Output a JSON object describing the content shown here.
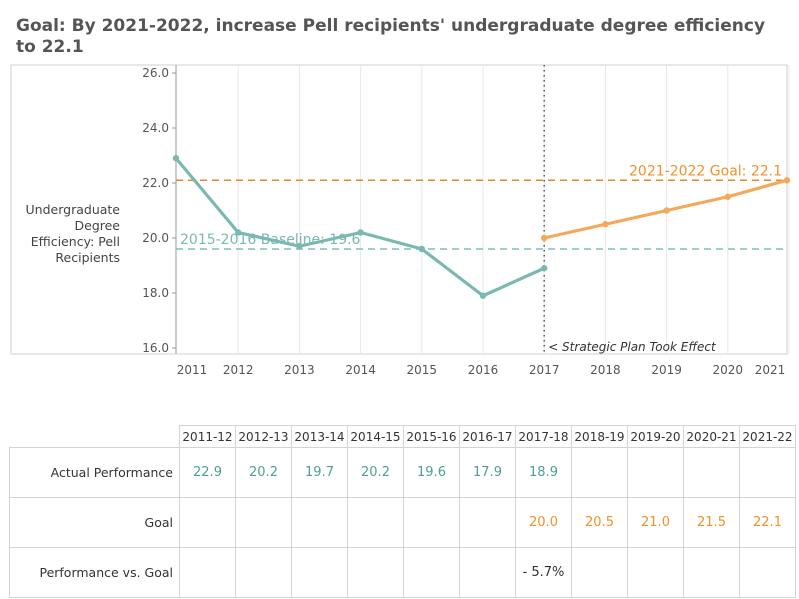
{
  "title": "Goal: By 2021-2022, increase Pell recipients' undergraduate degree efficiency to 22.1",
  "colors": {
    "actual": "#7ab8b2",
    "goal": "#f4a95a",
    "goal_line": "#e0892a",
    "baseline_line": "#7fc0b5",
    "baseline_text": "#7ab8b2",
    "goal_text": "#f0922a",
    "grid": "#e8e8e8",
    "axis": "#999999"
  },
  "chart_data": {
    "type": "line",
    "title": "Goal: By 2021-2022, increase Pell recipients' undergraduate degree efficiency to 22.1",
    "ylabel": "Undergraduate Degree Efficiency: Pell Recipients",
    "xlabel": "",
    "ylim": [
      16.0,
      26.0
    ],
    "yticks": [
      "16.0",
      "18.0",
      "20.0",
      "22.0",
      "24.0",
      "26.0"
    ],
    "x": [
      "2011",
      "2012",
      "2013",
      "2014",
      "2015",
      "2016",
      "2017",
      "2018",
      "2019",
      "2020",
      "2021"
    ],
    "series": [
      {
        "name": "Actual Performance",
        "x": [
          "2011",
          "2012",
          "2013",
          "2014",
          "2015",
          "2016",
          "2017"
        ],
        "values": [
          22.9,
          20.2,
          19.7,
          20.2,
          19.6,
          17.9,
          18.9
        ]
      },
      {
        "name": "Goal",
        "x": [
          "2017",
          "2018",
          "2019",
          "2020",
          "2021"
        ],
        "values": [
          20.0,
          20.5,
          21.0,
          21.5,
          22.1
        ]
      }
    ],
    "reference_lines": [
      {
        "label": "2021-2022 Goal: 22.1",
        "value": 22.1
      },
      {
        "label": "2015-2016 Baseline: 19.6",
        "value": 19.6
      }
    ],
    "annotation": {
      "label": "< Strategic Plan Took Effect",
      "x": "2017"
    }
  },
  "table": {
    "headers": [
      "2011-12",
      "2012-13",
      "2013-14",
      "2014-15",
      "2015-16",
      "2016-17",
      "2017-18",
      "2018-19",
      "2019-20",
      "2020-21",
      "2021-22"
    ],
    "rows": [
      {
        "label": "Actual Performance",
        "style": "teal",
        "cells": [
          "22.9",
          "20.2",
          "19.7",
          "20.2",
          "19.6",
          "17.9",
          "18.9",
          "",
          "",
          "",
          ""
        ]
      },
      {
        "label": "Goal",
        "style": "orange",
        "cells": [
          "",
          "",
          "",
          "",
          "",
          "",
          "20.0",
          "20.5",
          "21.0",
          "21.5",
          "22.1"
        ]
      },
      {
        "label": "Performance vs. Goal",
        "style": "perf",
        "cells": [
          "",
          "",
          "",
          "",
          "",
          "",
          "- 5.7%",
          "",
          "",
          "",
          ""
        ]
      }
    ]
  }
}
